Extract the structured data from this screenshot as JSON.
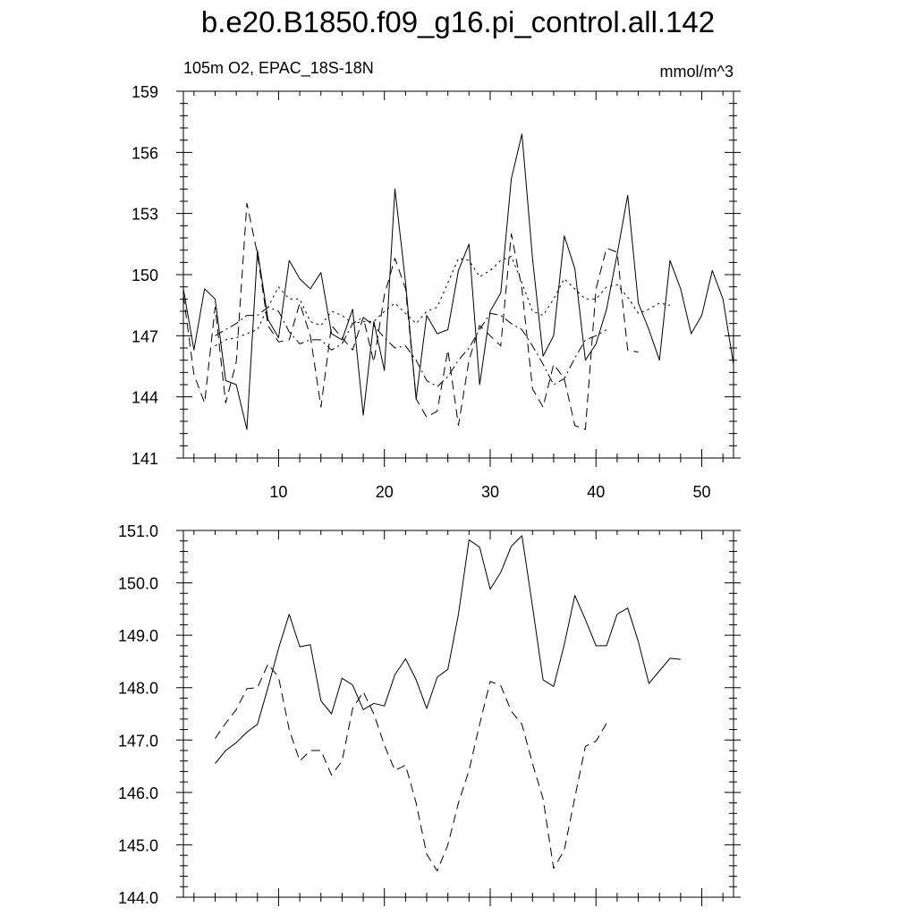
{
  "title": "b.e20.B1850.f09_g16.pi_control.all.142",
  "subtitle_left": "105m O2, EPAC_18S-18N",
  "subtitle_right": "mmol/m^3",
  "chart_data": [
    {
      "type": "line",
      "xlim": [
        1,
        53
      ],
      "ylim": [
        141,
        159
      ],
      "x_ticks": [
        10,
        20,
        30,
        40,
        50
      ],
      "y_ticks": [
        141,
        144,
        147,
        150,
        153,
        156,
        159
      ],
      "y_tick_labels": [
        "141",
        "144",
        "147",
        "150",
        "153",
        "156",
        "159"
      ],
      "x_tick_labels": [
        "10",
        "20",
        "30",
        "40",
        "50"
      ],
      "grid": false,
      "series": [
        {
          "style": "solid",
          "x_start": 1,
          "values": [
            149.3,
            146.3,
            149.3,
            148.8,
            144.8,
            144.6,
            142.4,
            151.2,
            147.8,
            146.9,
            150.7,
            149.8,
            149.3,
            150.1,
            147.1,
            146.8,
            148.3,
            143.1,
            147.7,
            145.3,
            154.2,
            149.6,
            143.9,
            148.0,
            147.1,
            147.3,
            150.2,
            151.5,
            144.6,
            148.2,
            149.1,
            154.7,
            156.9,
            150.8,
            146.0,
            147.0,
            151.9,
            150.3,
            145.8,
            146.6,
            148.3,
            151.0,
            153.9,
            148.6,
            147.3,
            145.8,
            150.7,
            149.3,
            147.1,
            148.0,
            150.2,
            148.8,
            145.6
          ]
        },
        {
          "style": "dashed",
          "x_start": 1,
          "values": [
            149.0,
            145.1,
            143.7,
            148.4,
            143.7,
            145.7,
            153.5,
            151.0,
            147.5,
            146.7,
            146.8,
            148.6,
            147.0,
            143.5,
            147.5,
            146.9,
            146.3,
            147.9,
            145.7,
            149.0,
            150.8,
            149.3,
            143.9,
            143.0,
            143.3,
            146.3,
            142.6,
            145.8,
            147.5,
            147.0,
            146.5,
            152.0,
            149.3,
            144.4,
            143.5,
            145.6,
            144.9,
            142.6,
            142.4,
            149.3,
            151.3,
            151.1,
            146.3,
            146.2
          ]
        },
        {
          "style": "dotted",
          "x_start": 4,
          "values": [
            146.5,
            146.8,
            146.9,
            147.1,
            147.3,
            148.4,
            149.4,
            148.8,
            148.8,
            147.7,
            147.5,
            148.2,
            148.0,
            147.6,
            147.7,
            147.7,
            148.2,
            148.6,
            148.1,
            147.6,
            148.2,
            148.4,
            149.6,
            150.8,
            150.7,
            149.9,
            150.2,
            150.7,
            150.9,
            149.6,
            148.2,
            148.0,
            148.8,
            149.8,
            149.3,
            148.8,
            148.8,
            149.4,
            149.5,
            148.9,
            148.1,
            148.3,
            148.6,
            148.5
          ]
        },
        {
          "style": "dashdot",
          "x_start": 4,
          "values": [
            147.0,
            147.3,
            147.6,
            148.0,
            148.0,
            148.4,
            148.2,
            147.2,
            146.6,
            146.8,
            146.8,
            146.3,
            146.6,
            147.6,
            147.9,
            147.5,
            146.9,
            146.4,
            146.5,
            145.8,
            144.8,
            144.5,
            145.0,
            145.8,
            146.4,
            147.3,
            148.1,
            148.0,
            147.6,
            147.3,
            146.5,
            145.6,
            144.6,
            144.9,
            145.9,
            146.8,
            147.0,
            147.3
          ]
        }
      ]
    },
    {
      "type": "line",
      "xlim": [
        1,
        53
      ],
      "ylim": [
        144.0,
        151.0
      ],
      "x_ticks": [
        10,
        20,
        30,
        40,
        50
      ],
      "y_ticks": [
        144,
        145,
        146,
        147,
        148,
        149,
        150,
        151
      ],
      "y_tick_labels": [
        "144.0",
        "145.0",
        "146.0",
        "147.0",
        "148.0",
        "149.0",
        "150.0",
        "151.0"
      ],
      "grid": false,
      "series": [
        {
          "style": "solid",
          "x_start": 4,
          "values": [
            146.55,
            146.8,
            146.95,
            147.15,
            147.3,
            148.0,
            148.75,
            149.4,
            148.78,
            148.82,
            147.75,
            147.5,
            148.18,
            148.05,
            147.58,
            147.7,
            147.65,
            148.25,
            148.55,
            148.15,
            147.6,
            148.2,
            148.35,
            149.4,
            150.82,
            150.68,
            149.88,
            150.2,
            150.7,
            150.9,
            149.55,
            148.15,
            148.02,
            148.82,
            149.76,
            149.3,
            148.8,
            148.8,
            149.4,
            149.52,
            148.88,
            148.08,
            148.32,
            148.56,
            148.54
          ]
        },
        {
          "style": "dashed",
          "x_start": 4,
          "values": [
            147.03,
            147.32,
            147.58,
            147.98,
            148.0,
            148.45,
            148.2,
            147.2,
            146.6,
            146.8,
            146.8,
            146.33,
            146.6,
            147.6,
            147.92,
            147.5,
            146.9,
            146.42,
            146.52,
            145.8,
            144.82,
            144.5,
            145.0,
            145.8,
            146.42,
            147.3,
            148.12,
            148.04,
            147.55,
            147.3,
            146.55,
            145.88,
            144.55,
            144.9,
            145.9,
            146.88,
            146.98,
            147.32
          ]
        }
      ]
    }
  ]
}
